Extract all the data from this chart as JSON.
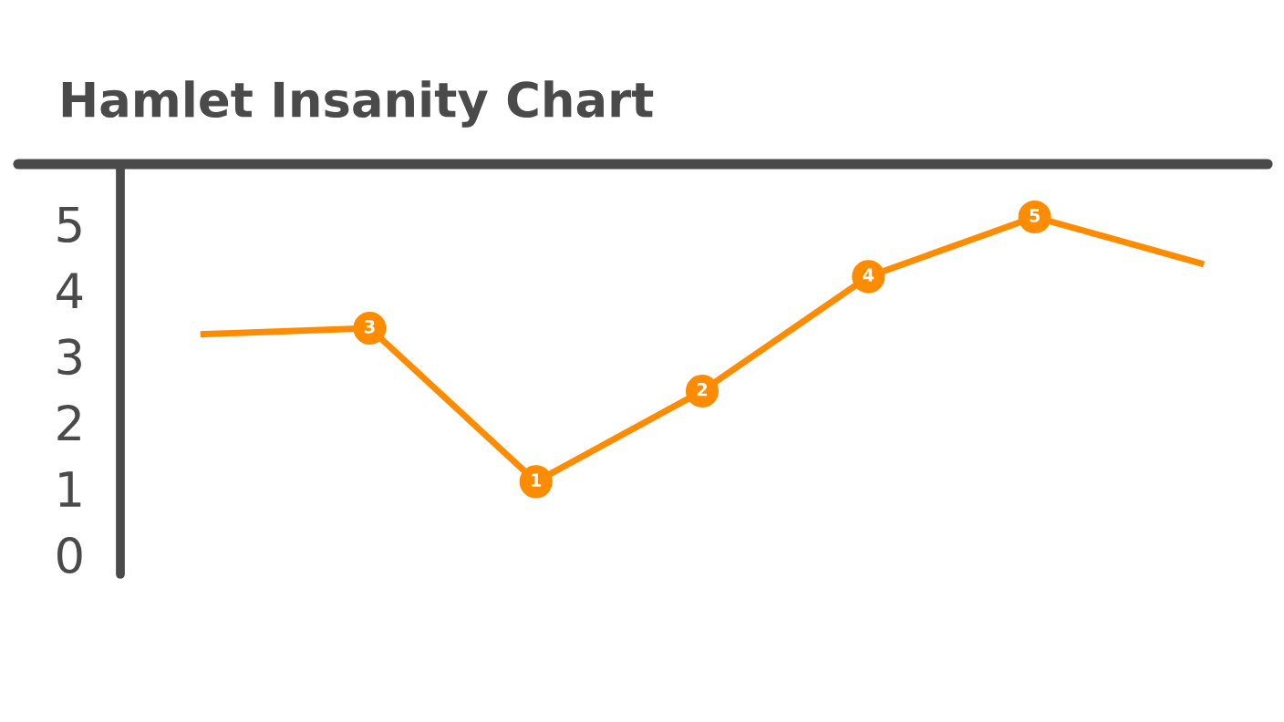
{
  "chart_data": {
    "type": "line",
    "title": "Hamlet Insanity Chart",
    "categories": [
      null,
      null,
      null,
      null,
      null,
      null,
      null
    ],
    "series": [
      {
        "color": "#ff8c00",
        "values": [
          3.33,
          3.42,
          1.1,
          2.47,
          4.2,
          5.1,
          4.4
        ],
        "value_labels": [
          null,
          "3",
          "1",
          "2",
          "4",
          "5",
          null
        ]
      }
    ],
    "ylim": [
      -0.3,
      5.9
    ],
    "yticks": [
      0,
      1,
      2,
      3,
      4,
      5
    ],
    "grid": false,
    "legend": false,
    "marker": "circle",
    "line_style": "solid",
    "tick_labels": "y"
  }
}
